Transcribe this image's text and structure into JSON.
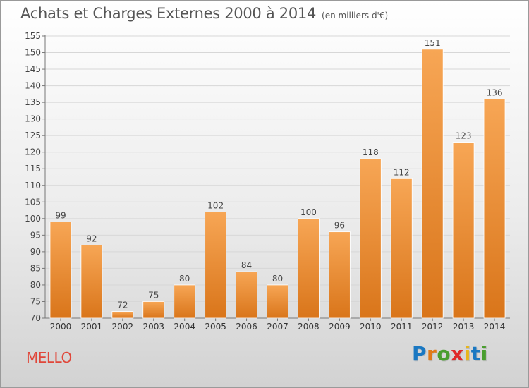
{
  "header": {
    "title": "Achats et Charges Externes 2000 à 2014",
    "subtitle": "(en milliers d'€)"
  },
  "commune": "MELLO",
  "logo": {
    "text": "Proxiti",
    "colors": [
      "#1a78c2",
      "#e07b1a",
      "#4a9e2f",
      "#e02a2a",
      "#e8b61a",
      "#1a78c2",
      "#4a9e2f"
    ]
  },
  "chart_data": {
    "type": "bar",
    "title": "Achats et Charges Externes 2000 à 2014",
    "subtitle": "(en milliers d'€)",
    "categories": [
      "2000",
      "2001",
      "2002",
      "2003",
      "2004",
      "2005",
      "2006",
      "2007",
      "2008",
      "2009",
      "2010",
      "2011",
      "2012",
      "2013",
      "2014"
    ],
    "values": [
      99,
      92,
      72,
      75,
      80,
      102,
      84,
      80,
      100,
      96,
      118,
      112,
      151,
      123,
      136
    ],
    "ylim": [
      70,
      155
    ],
    "ytick_step": 5,
    "grid": true,
    "bar_color": "#f0902a",
    "bar_color_light": "#f7a655",
    "bar_color_dark": "#d9751a"
  }
}
